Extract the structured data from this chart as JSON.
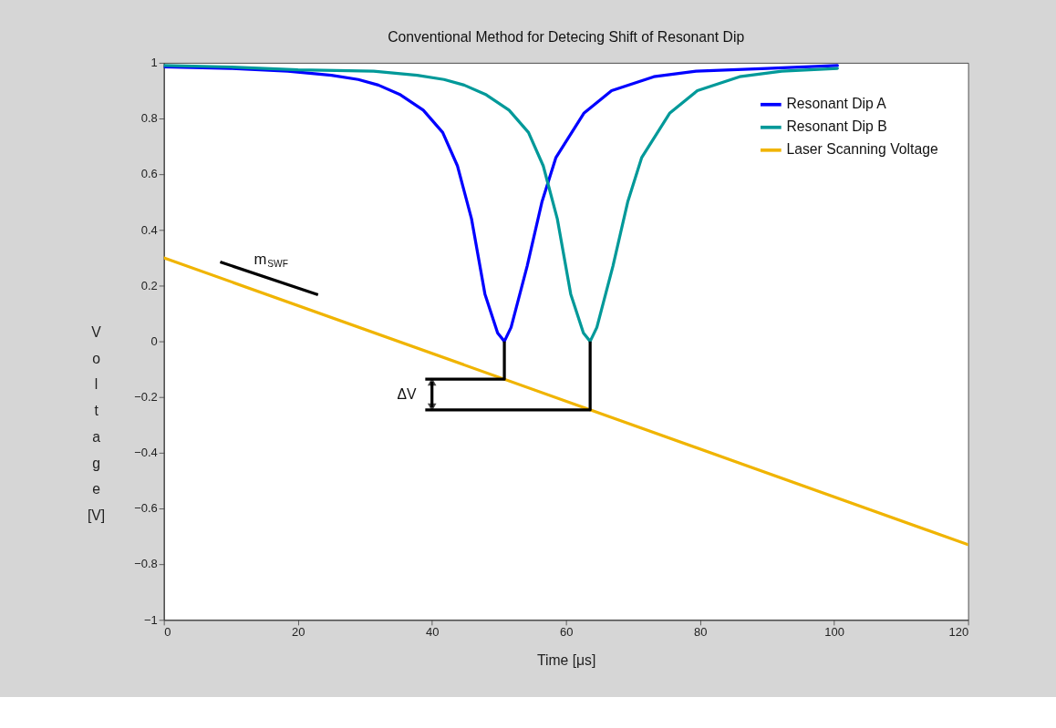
{
  "chart_data": {
    "type": "line",
    "title": "Conventional Method for Detecing Shift of Resonant Dip",
    "xlabel": "Time [μs]",
    "ylabel": "Voltage [V]",
    "xlim": [
      0,
      120
    ],
    "xticks": [
      0,
      20,
      40,
      60,
      80,
      100,
      120
    ],
    "ylim": [
      -1,
      1
    ],
    "yticks": [
      -1,
      -0.8,
      -0.6,
      -0.4,
      -0.2,
      0,
      0.2,
      0.4,
      0.6,
      0.8,
      1
    ],
    "grid": false,
    "legend": "top right",
    "line_style": "solid",
    "series": [
      {
        "name": "Resonant Dip A",
        "color": "#0000ff",
        "x": [
          0,
          10,
          18.5,
          25,
          29,
          32,
          35.3,
          38.7,
          41.6,
          43.8,
          45.9,
          47.9,
          49.8,
          50.8,
          51.8,
          54.2,
          56.4,
          58.5,
          62.7,
          66.8,
          73.1,
          79.4,
          90,
          100.5
        ],
        "values": [
          0.985,
          0.98,
          0.97,
          0.955,
          0.94,
          0.92,
          0.885,
          0.83,
          0.75,
          0.63,
          0.44,
          0.17,
          0.03,
          0,
          0.05,
          0.27,
          0.5,
          0.66,
          0.82,
          0.9,
          0.95,
          0.97,
          0.98,
          0.99
        ]
      },
      {
        "name": "Resonant Dip B",
        "color": "#009999",
        "x": [
          0,
          10,
          20,
          31.3,
          37.8,
          41.8,
          44.8,
          48.1,
          51.5,
          54.4,
          56.6,
          58.7,
          60.7,
          62.6,
          63.6,
          64.6,
          67,
          69.2,
          71.3,
          75.5,
          79.6,
          85.9,
          92.2,
          100.5
        ],
        "values": [
          0.99,
          0.985,
          0.975,
          0.97,
          0.955,
          0.94,
          0.92,
          0.885,
          0.83,
          0.75,
          0.63,
          0.44,
          0.17,
          0.03,
          0,
          0.05,
          0.27,
          0.5,
          0.66,
          0.82,
          0.9,
          0.95,
          0.97,
          0.98
        ]
      },
      {
        "name": "Laser Scanning Voltage",
        "color": "#f0b400",
        "x": [
          0,
          120
        ],
        "values": [
          0.3,
          -0.73
        ]
      },
      {
        "color": "#000000",
        "x": [
          39,
          50.8,
          50.8
        ],
        "values": [
          -0.136,
          -0.136,
          0
        ]
      },
      {
        "color": "#000000",
        "x": [
          39,
          63.6,
          63.6
        ],
        "values": [
          -0.246,
          -0.246,
          0
        ]
      },
      {
        "color": "#000000",
        "x": [
          40,
          40
        ],
        "values": [
          -0.145,
          -0.237
        ],
        "marker": "triangle"
      },
      {
        "color": "#000000",
        "x": [
          8.4,
          23
        ],
        "values": [
          0.285,
          0.167
        ]
      }
    ],
    "annotations": [
      "ΔV",
      "m$_{SWF}$"
    ]
  }
}
